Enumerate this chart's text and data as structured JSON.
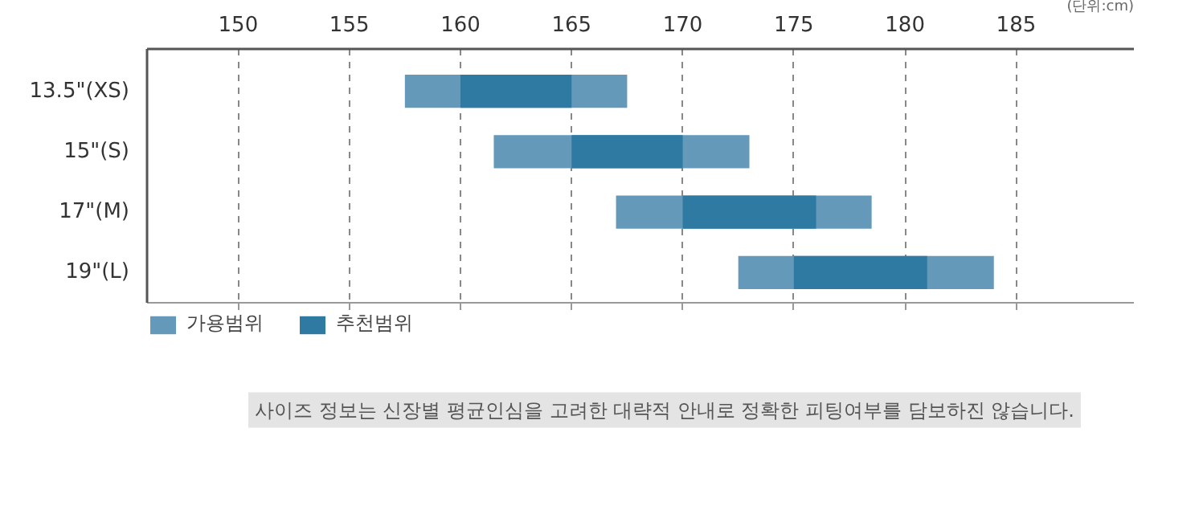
{
  "chart_data": {
    "type": "bar",
    "orientation": "horizontal",
    "categories": [
      "13.5\"(XS)",
      "15\"(S)",
      "17\"(M)",
      "19\"(L)"
    ],
    "series": [
      {
        "name": "가용범위",
        "color": "#6499b9",
        "base": [
          157.5,
          161.5,
          167,
          172.5
        ],
        "values": [
          10,
          11.5,
          11.5,
          11.5
        ]
      },
      {
        "name": "추천범위",
        "color": "#2e7aa3",
        "base": [
          160,
          165,
          170,
          175
        ],
        "values": [
          5,
          5,
          6,
          6
        ]
      }
    ],
    "xlim": [
      145.9,
      190.3
    ],
    "xticks": [
      150,
      155,
      160,
      165,
      170,
      175,
      180,
      185
    ],
    "grid": "x",
    "legend": "bottom left",
    "annotations": [
      "(단위:cm)",
      "사이즈 정보는 신장별 평균인심을 고려한 대략적 안내로 정확한 피팅여부를 담보하진 않습니다."
    ]
  }
}
